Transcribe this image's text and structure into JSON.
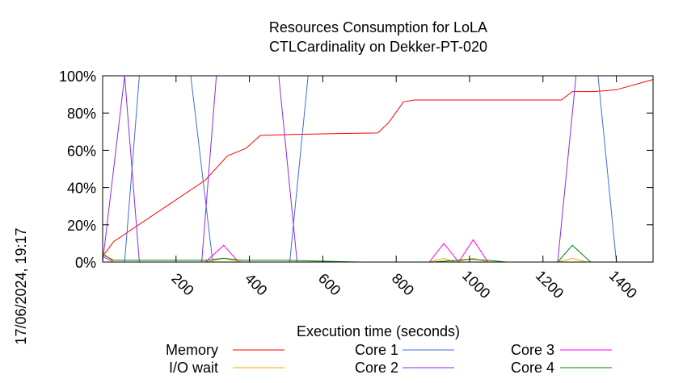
{
  "chart_data": {
    "type": "line",
    "title": [
      "Resources Consumption for LoLA",
      "CTLCardinality on Dekker-PT-020"
    ],
    "side_label": "17/06/2024, 19:17",
    "xlabel": "Execution time (seconds)",
    "ylabel": "",
    "xlim": [
      0,
      1500
    ],
    "ylim": [
      0,
      100
    ],
    "x_ticks": [
      200,
      400,
      600,
      800,
      1000,
      1200,
      1400
    ],
    "y_ticks": [
      {
        "value": 0,
        "label": "0%"
      },
      {
        "value": 20,
        "label": "20%"
      },
      {
        "value": 40,
        "label": "40%"
      },
      {
        "value": 60,
        "label": "60%"
      },
      {
        "value": 80,
        "label": "80%"
      },
      {
        "value": 100,
        "label": "100%"
      }
    ],
    "grid": false,
    "legend_position": "bottom",
    "series": [
      {
        "name": "Memory",
        "color": "#ff0000",
        "points": [
          [
            0,
            3
          ],
          [
            30,
            11
          ],
          [
            280,
            44
          ],
          [
            340,
            57
          ],
          [
            390,
            61
          ],
          [
            430,
            68
          ],
          [
            520,
            68.5
          ],
          [
            640,
            69
          ],
          [
            750,
            69.3
          ],
          [
            780,
            75
          ],
          [
            820,
            86
          ],
          [
            850,
            87
          ],
          [
            1000,
            87
          ],
          [
            1100,
            87
          ],
          [
            1250,
            87
          ],
          [
            1280,
            91.5
          ],
          [
            1340,
            91.5
          ],
          [
            1400,
            92.5
          ],
          [
            1500,
            98
          ]
        ]
      },
      {
        "name": "Core 1",
        "color": "#4169e1",
        "points": [
          [
            0,
            0
          ],
          [
            30,
            0
          ],
          [
            60,
            0
          ],
          [
            100,
            100
          ],
          [
            240,
            100
          ],
          [
            300,
            0
          ],
          [
            510,
            0
          ],
          [
            560,
            100
          ],
          [
            1000,
            100
          ],
          [
            1350,
            100
          ],
          [
            1400,
            0
          ]
        ]
      },
      {
        "name": "Core 3",
        "color": "#ff00ff",
        "points": [
          [
            0,
            3
          ],
          [
            30,
            0
          ],
          [
            280,
            0
          ],
          [
            330,
            9
          ],
          [
            370,
            0
          ],
          [
            890,
            0
          ],
          [
            930,
            10
          ],
          [
            970,
            0
          ],
          [
            1010,
            12
          ],
          [
            1050,
            0
          ],
          [
            1500,
            0
          ]
        ]
      },
      {
        "name": "I/O wait",
        "color": "#ffa500",
        "points": [
          [
            0,
            5
          ],
          [
            30,
            0
          ],
          [
            280,
            0
          ],
          [
            330,
            2
          ],
          [
            380,
            0
          ],
          [
            890,
            0
          ],
          [
            930,
            2
          ],
          [
            960,
            0
          ],
          [
            1010,
            2
          ],
          [
            1050,
            0
          ],
          [
            1240,
            0
          ],
          [
            1280,
            2
          ],
          [
            1320,
            0
          ]
        ]
      },
      {
        "name": "Core 2",
        "color": "#8a2be2",
        "points": [
          [
            0,
            0
          ],
          [
            60,
            100
          ],
          [
            100,
            0
          ],
          [
            270,
            0
          ],
          [
            310,
            100
          ],
          [
            480,
            100
          ],
          [
            530,
            0
          ],
          [
            1240,
            0
          ],
          [
            1290,
            100
          ],
          [
            1500,
            100
          ]
        ]
      },
      {
        "name": "Core 4",
        "color": "#008000",
        "points": [
          [
            0,
            4
          ],
          [
            30,
            1
          ],
          [
            60,
            1
          ],
          [
            280,
            1
          ],
          [
            330,
            2
          ],
          [
            380,
            1
          ],
          [
            500,
            1
          ],
          [
            580,
            0.5
          ],
          [
            700,
            0
          ],
          [
            900,
            0
          ],
          [
            1000,
            1.5
          ],
          [
            1050,
            1
          ],
          [
            1100,
            0
          ],
          [
            1240,
            0
          ],
          [
            1280,
            9
          ],
          [
            1330,
            0
          ]
        ]
      }
    ],
    "legend_layout": [
      {
        "name": "Memory",
        "column": 0,
        "row": 0
      },
      {
        "name": "I/O wait",
        "column": 0,
        "row": 1
      },
      {
        "name": "Core 1",
        "column": 1,
        "row": 0
      },
      {
        "name": "Core 2",
        "column": 1,
        "row": 1
      },
      {
        "name": "Core 3",
        "column": 2,
        "row": 0
      },
      {
        "name": "Core 4",
        "column": 2,
        "row": 1
      }
    ]
  }
}
